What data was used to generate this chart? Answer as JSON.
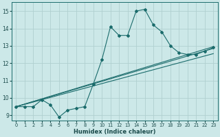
{
  "xlabel": "Humidex (Indice chaleur)",
  "ylabel": "",
  "xlim": [
    -0.5,
    23.5
  ],
  "ylim": [
    8.7,
    15.5
  ],
  "xticks": [
    0,
    1,
    2,
    3,
    4,
    5,
    6,
    7,
    8,
    9,
    10,
    11,
    12,
    13,
    14,
    15,
    16,
    17,
    18,
    19,
    20,
    21,
    22,
    23
  ],
  "yticks": [
    9,
    10,
    11,
    12,
    13,
    14,
    15
  ],
  "bg_color": "#cce8e8",
  "grid_color": "#b0d0d0",
  "line_color": "#1a6b6b",
  "jagged_line": {
    "x": [
      0,
      1,
      2,
      3,
      4,
      5,
      6,
      7,
      8,
      9,
      10,
      11,
      12,
      13,
      14,
      15,
      16,
      17,
      18,
      19,
      20,
      21,
      22,
      23
    ],
    "y": [
      9.5,
      9.5,
      9.5,
      9.9,
      9.6,
      8.9,
      9.3,
      9.4,
      9.5,
      10.8,
      12.2,
      14.1,
      13.6,
      13.6,
      15.0,
      15.1,
      14.2,
      13.8,
      13.0,
      12.6,
      12.5,
      12.5,
      12.7,
      12.9
    ]
  },
  "straight_lines": [
    {
      "x": [
        0,
        23
      ],
      "y": [
        9.5,
        12.55
      ]
    },
    {
      "x": [
        0,
        23
      ],
      "y": [
        9.5,
        12.85
      ]
    },
    {
      "x": [
        0,
        23
      ],
      "y": [
        9.5,
        12.95
      ]
    }
  ],
  "figsize": [
    3.2,
    2.0
  ],
  "dpi": 100
}
